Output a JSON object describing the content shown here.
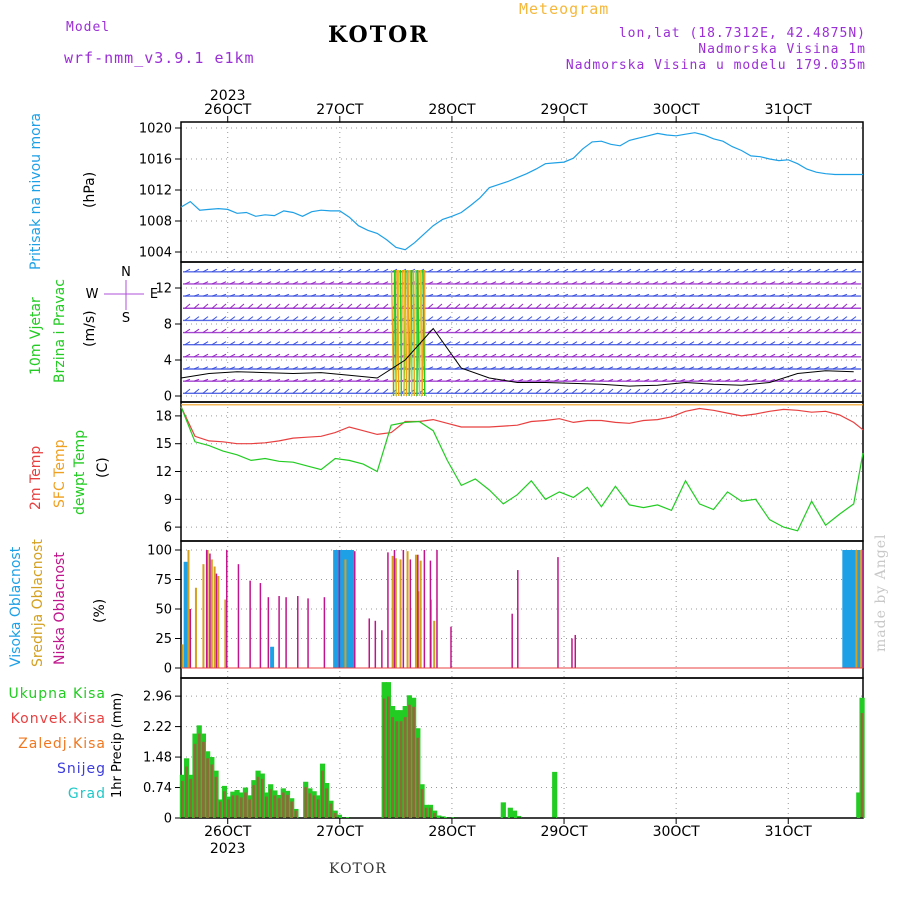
{
  "header": {
    "model_label": "Model",
    "model_name": "wrf-nmm_v3.9.1  e1km",
    "title": "KOTOR",
    "product": "Meteogram",
    "lonlat": "lon,lat (18.7312E, 42.4875N)",
    "elevation": "Nadmorska Visina 1m",
    "model_elevation": "Nadmorska Visina u modelu 179.035m"
  },
  "footer": {
    "station": "KOTOR",
    "signature": "made by Angel"
  },
  "colors": {
    "pressure": "#1ea0e6",
    "temp2m": "#e84040",
    "sfc_temp": "#f0a020",
    "dewpt": "#22cc22",
    "cloud_high": "#1ea0e6",
    "cloud_mid": "#d4a020",
    "cloud_low": "#c0148c",
    "precip_total": "#22cc22",
    "precip_conv": "#e84040",
    "precip_frozen": "#f07820",
    "snow": "#3c3cdc",
    "hail": "#20c8c8",
    "wind_purple": "#9628c8",
    "wind_blue": "#3a50e0"
  },
  "dates": {
    "year": "2023",
    "labels": [
      "26OCT",
      "27OCT",
      "28OCT",
      "29OCT",
      "30OCT",
      "31OCT"
    ]
  },
  "chart_data": [
    {
      "type": "line",
      "panel": "pressure",
      "ylabel": [
        "Pritisak na nivou mora",
        "(hPa)"
      ],
      "ylim": [
        1004,
        1020
      ],
      "yticks": [
        1004,
        1008,
        1012,
        1016,
        1020
      ],
      "x_hours": [
        0,
        2,
        4,
        6,
        8,
        10,
        12,
        14,
        16,
        18,
        20,
        22,
        24,
        26,
        28,
        30,
        32,
        34,
        36,
        38,
        40,
        42,
        44,
        46,
        48,
        50,
        52,
        54,
        56,
        58,
        60,
        62,
        64,
        66,
        68,
        70,
        72,
        74,
        76,
        78,
        80,
        82,
        84,
        86,
        88,
        90,
        92,
        94,
        96,
        98,
        100,
        102,
        104,
        106,
        108,
        110,
        112,
        114,
        116,
        118,
        120,
        122,
        124,
        126,
        128,
        130,
        132,
        134,
        136,
        138,
        140,
        142,
        144,
        146
      ],
      "series": [
        {
          "values": [
            1009.8,
            1010.5,
            1009.4,
            1009.5,
            1009.6,
            1009.5,
            1009.0,
            1009.1,
            1008.6,
            1008.8,
            1008.7,
            1009.3,
            1009.1,
            1008.6,
            1009.2,
            1009.4,
            1009.3,
            1009.3,
            1008.5,
            1007.4,
            1006.8,
            1006.4,
            1005.6,
            1004.6,
            1004.3,
            1005.2,
            1006.3,
            1007.4,
            1008.2,
            1008.6,
            1009.1,
            1010.0,
            1011.0,
            1012.3,
            1012.7,
            1013.1,
            1013.6,
            1014.1,
            1014.7,
            1015.4,
            1015.5,
            1015.6,
            1016.1,
            1017.3,
            1018.2,
            1018.3,
            1017.9,
            1017.7,
            1018.4,
            1018.7,
            1019.0,
            1019.3,
            1019.1,
            1019.0,
            1019.2,
            1019.4,
            1019.1,
            1018.6,
            1018.3,
            1017.6,
            1017.1,
            1016.4,
            1016.3,
            1016.0,
            1015.8,
            1015.9,
            1015.4,
            1014.7,
            1014.3,
            1014.1,
            1014.0,
            1014.0,
            1014.0,
            1014.0
          ]
        }
      ]
    },
    {
      "type": "vector",
      "panel": "wind",
      "ylabel": [
        "10m Vjetar",
        "Brzina i Pravac",
        "(m/s)"
      ],
      "compass": [
        "N",
        "W",
        "E",
        "S"
      ],
      "ylim": [
        0,
        14
      ],
      "yticks": [
        0,
        4,
        8,
        12
      ],
      "x_hours": [
        0,
        6,
        12,
        18,
        24,
        30,
        36,
        42,
        48,
        54,
        60,
        66,
        72,
        78,
        84,
        90,
        96,
        102,
        108,
        114,
        120,
        126,
        132,
        138,
        144
      ],
      "series": [
        {
          "values": [
            2.0,
            2.5,
            2.7,
            2.6,
            2.5,
            2.6,
            2.3,
            2.0,
            4.0,
            7.5,
            3.1,
            2.0,
            1.5,
            1.5,
            1.4,
            1.3,
            1.1,
            1.2,
            1.5,
            1.3,
            1.2,
            1.5,
            2.5,
            2.8,
            2.7
          ]
        }
      ]
    },
    {
      "type": "line",
      "panel": "temperature",
      "ylabel": [
        "2m Temp",
        "SFC Temp",
        "dewpt Temp",
        "(C)"
      ],
      "ylim": [
        4.5,
        19.5
      ],
      "yticks": [
        6,
        9,
        12,
        15,
        18
      ],
      "x_hours": [
        0,
        3,
        6,
        9,
        12,
        15,
        18,
        21,
        24,
        27,
        30,
        33,
        36,
        39,
        42,
        45,
        48,
        51,
        54,
        57,
        60,
        63,
        66,
        69,
        72,
        75,
        78,
        81,
        84,
        87,
        90,
        93,
        96,
        99,
        102,
        105,
        108,
        111,
        114,
        117,
        120,
        123,
        126,
        129,
        132,
        135,
        138,
        141,
        144,
        146
      ],
      "series": [
        {
          "name": "2m Temp",
          "values": [
            19.0,
            15.8,
            15.3,
            15.2,
            15.0,
            15.0,
            15.1,
            15.3,
            15.6,
            15.7,
            15.8,
            16.2,
            16.8,
            16.4,
            16.0,
            16.2,
            17.4,
            17.4,
            17.6,
            17.2,
            16.8,
            16.8,
            16.8,
            16.9,
            17.0,
            17.4,
            17.5,
            17.7,
            17.3,
            17.5,
            17.5,
            17.3,
            17.2,
            17.5,
            17.6,
            17.9,
            18.5,
            18.8,
            18.6,
            18.3,
            18.0,
            18.2,
            18.5,
            18.7,
            18.6,
            18.4,
            18.5,
            18.1,
            17.3,
            16.5
          ]
        },
        {
          "name": "SFC Temp",
          "values": [
            19.2,
            19.2,
            19.2,
            19.2,
            19.2,
            19.2,
            19.2,
            19.2,
            19.2,
            19.2,
            19.2,
            19.2,
            19.2,
            19.2,
            19.2,
            19.2,
            19.2,
            19.2,
            19.2,
            19.2,
            19.2,
            19.2,
            19.2,
            19.2,
            19.2,
            19.2,
            19.2,
            19.2,
            19.2,
            19.2,
            19.2,
            19.2,
            19.2,
            19.2,
            19.2,
            19.2,
            19.2,
            19.2,
            19.2,
            19.2,
            19.2,
            19.2,
            19.2,
            19.2,
            19.2,
            19.2,
            19.2,
            19.2,
            19.2,
            19.2
          ]
        },
        {
          "name": "dewpt Temp",
          "values": [
            19.0,
            15.2,
            14.8,
            14.2,
            13.8,
            13.2,
            13.4,
            13.1,
            13.0,
            12.6,
            12.2,
            13.4,
            13.2,
            12.8,
            12.0,
            17.0,
            17.3,
            17.4,
            16.4,
            13.2,
            10.5,
            11.2,
            10.0,
            8.5,
            9.5,
            11.0,
            9.0,
            9.8,
            9.2,
            10.3,
            8.2,
            10.4,
            8.4,
            8.1,
            8.4,
            7.8,
            11.0,
            8.5,
            7.9,
            9.8,
            8.8,
            9.0,
            6.8,
            6.0,
            5.6,
            8.8,
            6.2,
            7.4,
            8.5,
            14.0
          ]
        }
      ]
    },
    {
      "type": "bar",
      "panel": "cloud",
      "ylabel": [
        "Visoka Oblacnost",
        "Srednja Oblacnost",
        "Niska Oblacnost",
        "(%)"
      ],
      "ylim": [
        0,
        100
      ],
      "yticks": [
        0,
        25,
        50,
        75,
        100
      ],
      "series": [
        {
          "name": "Visoka Oblacnost",
          "x_hours": [
            1.0,
            19.5,
            33.0,
            33.6,
            34.2,
            34.8,
            35.4,
            36.0,
            36.6,
            142.0,
            142.6,
            143.2,
            143.8,
            144.4,
            145.0
          ],
          "values": [
            90,
            18,
            100,
            100,
            100,
            100,
            100,
            100,
            100,
            100,
            100,
            100,
            100,
            100,
            100
          ]
        },
        {
          "name": "Srednja Oblacnost",
          "x_hours": [
            0.3,
            1.6,
            3.2,
            4.8,
            5.7,
            6.6,
            7.2,
            8.0,
            9.5,
            35.2,
            45.3,
            46.0,
            47.0,
            48.5,
            50.3,
            50.8,
            51.3,
            53.5,
            54.2,
            144.6,
            145.6
          ],
          "values": [
            20,
            100,
            68,
            88,
            100,
            92,
            86,
            78,
            58,
            92,
            95,
            93,
            92,
            99,
            96,
            65,
            91,
            58,
            40,
            100,
            100
          ]
        },
        {
          "name": "Niska Oblacnost",
          "x_hours": [
            2.0,
            5.5,
            6.2,
            7.6,
            9.8,
            12.3,
            14.8,
            17.0,
            18.7,
            21.0,
            22.5,
            25.0,
            27.2,
            30.7,
            33.9,
            37.2,
            40.3,
            41.6,
            43.0,
            44.3,
            45.7,
            47.6,
            49.1,
            50.7,
            52.1,
            53.4,
            54.8,
            57.8,
            70.9,
            72.1,
            80.7,
            83.7,
            84.4,
            146.0
          ],
          "values": [
            50,
            100,
            97,
            80,
            100,
            88,
            74,
            72,
            60,
            61,
            60,
            61,
            59,
            60,
            100,
            99,
            42,
            40,
            32,
            98,
            100,
            100,
            92,
            96,
            100,
            91,
            100,
            35,
            46,
            83,
            94,
            25,
            28,
            100
          ]
        }
      ]
    },
    {
      "type": "bar",
      "panel": "precip",
      "ylabel": [
        "1hr Precip (mm)"
      ],
      "legend": [
        "Ukupna Kisa",
        "Konvek.Kisa",
        "Zaledj.Kisa",
        "Snijeg",
        "Grad"
      ],
      "ylim": [
        0,
        3.4
      ],
      "yticks": [
        0,
        0.74,
        1.48,
        2.22,
        2.96
      ],
      "x_hours": [
        0.3,
        1.2,
        2.1,
        3.0,
        3.9,
        4.8,
        5.7,
        6.6,
        7.5,
        8.4,
        9.3,
        10.2,
        11.1,
        12.0,
        12.9,
        13.8,
        14.7,
        15.6,
        16.5,
        17.4,
        18.3,
        19.2,
        20.1,
        21.0,
        21.9,
        22.8,
        23.7,
        24.6,
        26.7,
        27.6,
        28.5,
        29.4,
        30.3,
        31.2,
        32.1,
        33.0,
        33.9,
        34.8,
        35.7,
        43.5,
        44.4,
        45.3,
        46.2,
        47.1,
        48.0,
        48.9,
        49.8,
        50.7,
        51.6,
        52.5,
        53.4,
        54.3,
        55.2,
        56.1,
        57.0,
        58.5,
        69.0,
        70.5,
        71.4,
        72.3,
        80.0,
        145.1,
        145.8
      ],
      "series": [
        {
          "name": "Ukupna Kisa",
          "values": [
            1.05,
            1.45,
            1.05,
            2.05,
            2.25,
            2.05,
            1.62,
            1.48,
            1.15,
            0.45,
            0.78,
            0.52,
            0.64,
            0.68,
            0.62,
            0.74,
            0.55,
            0.92,
            1.15,
            1.08,
            0.62,
            0.82,
            0.67,
            0.56,
            0.72,
            0.66,
            0.48,
            0.22,
            0.88,
            0.72,
            0.65,
            0.55,
            1.32,
            0.85,
            0.42,
            0.18,
            0.08,
            0.02,
            0.02,
            3.3,
            3.3,
            2.72,
            2.62,
            2.62,
            2.72,
            2.98,
            2.92,
            2.18,
            0.82,
            0.32,
            0.32,
            0.18,
            0.06,
            0.04,
            0.02,
            0.02,
            0.38,
            0.25,
            0.18,
            0.05,
            1.12,
            0.62,
            2.92
          ]
        },
        {
          "name": "Konvek.Kisa",
          "values": [
            0.9,
            1.25,
            0.95,
            1.8,
            2.05,
            1.85,
            1.45,
            1.3,
            1.0,
            0.4,
            0.65,
            0.45,
            0.55,
            0.55,
            0.5,
            0.62,
            0.45,
            0.8,
            1.0,
            0.95,
            0.52,
            0.7,
            0.55,
            0.48,
            0.62,
            0.56,
            0.4,
            0.18,
            0.75,
            0.6,
            0.55,
            0.45,
            1.15,
            0.72,
            0.35,
            0.12,
            0.0,
            0.0,
            0.0,
            2.9,
            2.95,
            2.45,
            2.35,
            2.35,
            2.45,
            2.75,
            2.7,
            1.95,
            0.7,
            0.25,
            0.25,
            0.12,
            0.0,
            0.0,
            0.0,
            0.0,
            0.0,
            0.0,
            0.0,
            0.0,
            0.0,
            0.0,
            2.55
          ]
        },
        {
          "name": "Zaledj.Kisa",
          "values": [
            0.0,
            0.0,
            0.0,
            0.0,
            0.0,
            0.0,
            0.0,
            0.0,
            0.0,
            0.0,
            0.0,
            0.0,
            0.0,
            0.0,
            0.0,
            0.0,
            0.0,
            0.0,
            0.0,
            0.0,
            0.0,
            0.0,
            0.0,
            0.0,
            0.0,
            0.0,
            0.0,
            0.0,
            0.0,
            0.0,
            0.0,
            0.0,
            0.0,
            0.0,
            0.0,
            0.0,
            0.0,
            0.0,
            0.0,
            0.0,
            0.0,
            0.0,
            0.0,
            0.0,
            0.0,
            0.0,
            0.0,
            0.0,
            0.0,
            0.0,
            0.0,
            0.0,
            0.0,
            0.0,
            0.0,
            0.0,
            0.0,
            0.0,
            0.0,
            0.0,
            0.0,
            0.0,
            0.0
          ]
        },
        {
          "name": "Snijeg",
          "values": [
            0.0,
            0.0,
            0.0,
            0.0,
            0.0,
            0.0,
            0.0,
            0.0,
            0.0,
            0.0,
            0.0,
            0.0,
            0.0,
            0.0,
            0.0,
            0.0,
            0.0,
            0.0,
            0.0,
            0.0,
            0.0,
            0.0,
            0.0,
            0.0,
            0.0,
            0.0,
            0.0,
            0.0,
            0.0,
            0.0,
            0.0,
            0.0,
            0.0,
            0.0,
            0.0,
            0.0,
            0.0,
            0.0,
            0.0,
            0.0,
            0.0,
            0.0,
            0.0,
            0.0,
            0.0,
            0.0,
            0.0,
            0.0,
            0.0,
            0.0,
            0.0,
            0.0,
            0.0,
            0.0,
            0.0,
            0.0,
            0.0,
            0.0,
            0.0,
            0.0,
            0.0,
            0.0,
            0.0
          ]
        },
        {
          "name": "Grad",
          "values": [
            0.0,
            0.0,
            0.0,
            0.0,
            0.0,
            0.0,
            0.0,
            0.0,
            0.0,
            0.0,
            0.0,
            0.0,
            0.0,
            0.0,
            0.0,
            0.0,
            0.0,
            0.0,
            0.0,
            0.0,
            0.0,
            0.0,
            0.0,
            0.0,
            0.0,
            0.0,
            0.0,
            0.0,
            0.0,
            0.0,
            0.0,
            0.0,
            0.0,
            0.0,
            0.0,
            0.0,
            0.0,
            0.0,
            0.0,
            0.0,
            0.0,
            0.0,
            0.0,
            0.0,
            0.0,
            0.0,
            0.0,
            0.0,
            0.0,
            0.0,
            0.0,
            0.0,
            0.0,
            0.0,
            0.0,
            0.0,
            0.0,
            0.0,
            0.0,
            0.0,
            0.0,
            0.0,
            0.0
          ]
        }
      ]
    }
  ]
}
